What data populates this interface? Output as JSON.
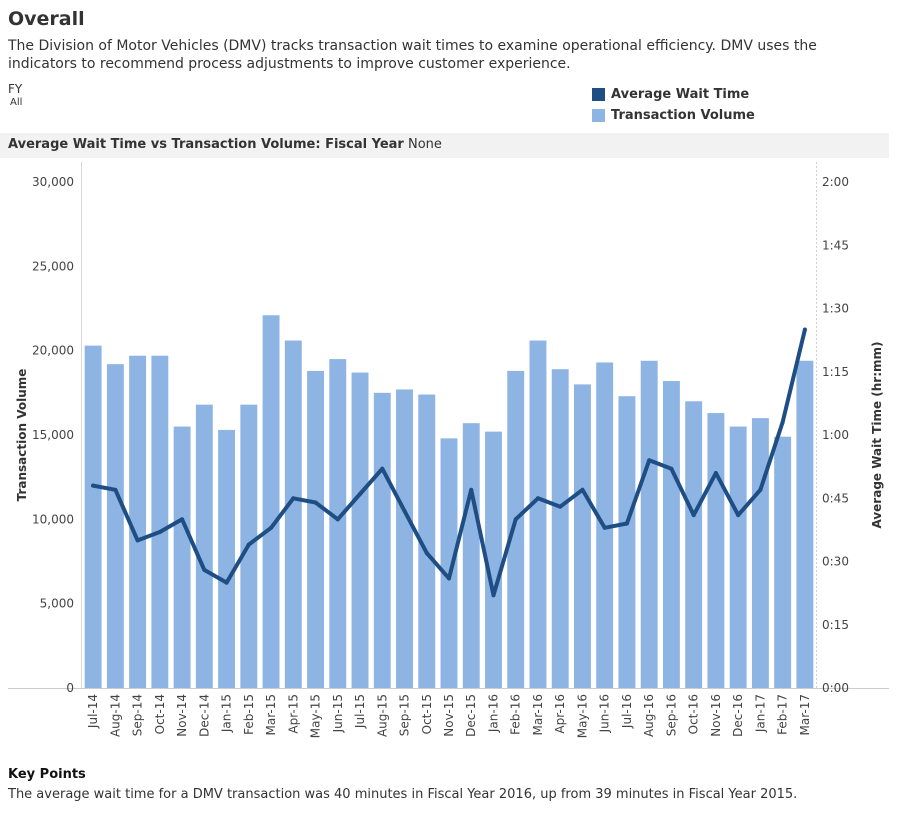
{
  "page": {
    "title": "Overall",
    "description": "The Division of Motor Vehicles (DMV) tracks transaction wait times to examine operational efficiency. DMV uses the indicators to recommend process adjustments to improve customer experience."
  },
  "filter": {
    "label": "FY",
    "value": "All"
  },
  "legend": {
    "items": [
      {
        "label": "Average Wait Time",
        "color": "#1f4e85",
        "shape": "square"
      },
      {
        "label": "Transaction Volume",
        "color": "#8db4e2",
        "shape": "square"
      }
    ]
  },
  "chart_header": {
    "prefix": "Average Wait Time vs Transaction Volume: Fiscal Year",
    "value": "None"
  },
  "chart_data": {
    "type": "bar",
    "categories": [
      "Jul-14",
      "Aug-14",
      "Sep-14",
      "Oct-14",
      "Nov-14",
      "Dec-14",
      "Jan-15",
      "Feb-15",
      "Mar-15",
      "Apr-15",
      "May-15",
      "Jun-15",
      "Jul-15",
      "Aug-15",
      "Sep-15",
      "Oct-15",
      "Nov-15",
      "Dec-15",
      "Jan-16",
      "Feb-16",
      "Mar-16",
      "Apr-16",
      "May-16",
      "Jun-16",
      "Jul-16",
      "Aug-16",
      "Sep-16",
      "Oct-16",
      "Nov-16",
      "Dec-16",
      "Jan-17",
      "Feb-17",
      "Mar-17"
    ],
    "series": [
      {
        "name": "Transaction Volume",
        "type": "bar",
        "axis": "left",
        "color": "#8db4e2",
        "values": [
          20300,
          19200,
          19700,
          19700,
          15500,
          16800,
          15300,
          16800,
          22100,
          20600,
          18800,
          19500,
          18700,
          17500,
          17700,
          17400,
          14800,
          15700,
          15200,
          18800,
          20600,
          18900,
          18000,
          19300,
          17300,
          19400,
          18200,
          17000,
          16300,
          15500,
          16000,
          14900,
          19400
        ]
      },
      {
        "name": "Average Wait Time",
        "type": "line",
        "axis": "right",
        "unit": "minutes",
        "color": "#1f4e85",
        "values": [
          48,
          47,
          35,
          37,
          40,
          28,
          25,
          34,
          38,
          45,
          44,
          40,
          46,
          52,
          42,
          32,
          26,
          47,
          22,
          40,
          45,
          43,
          47,
          38,
          39,
          54,
          52,
          41,
          51,
          41,
          47,
          63,
          85
        ]
      }
    ],
    "y_left": {
      "label": "Transaction Volume",
      "ylim": [
        0,
        30000
      ],
      "ticks": [
        0,
        5000,
        10000,
        15000,
        20000,
        25000,
        30000
      ],
      "tick_labels": [
        "0",
        "5,000",
        "10,000",
        "15,000",
        "20,000",
        "25,000",
        "30,000"
      ]
    },
    "y_right": {
      "label": "Average Wait Time (hr:mm)",
      "ylim": [
        0,
        120
      ],
      "ticks": [
        0,
        15,
        30,
        45,
        60,
        75,
        90,
        105,
        120
      ],
      "tick_labels": [
        "0:00",
        "0:15",
        "0:30",
        "0:45",
        "1:00",
        "1:15",
        "1:30",
        "1:45",
        "2:00"
      ]
    },
    "grid": false
  },
  "key_points": {
    "title": "Key Points",
    "text": "The average wait time for a DMV transaction was 40 minutes in Fiscal Year 2016, up from 39 minutes in Fiscal Year 2015."
  }
}
